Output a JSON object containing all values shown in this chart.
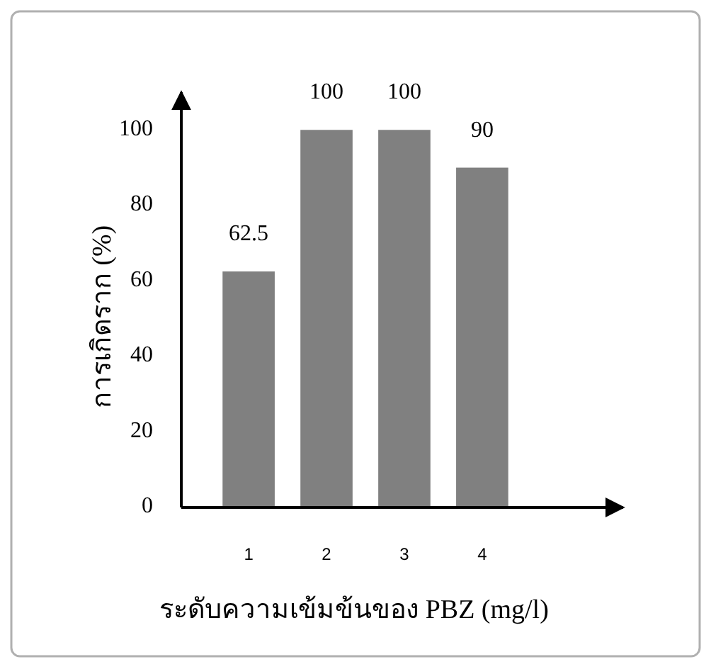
{
  "chart_data": {
    "type": "bar",
    "xlabel": "ระดับความเข้มข้นของ PBZ (mg/l)",
    "ylabel": "การเกิดราก (%)",
    "categories": [
      "1",
      "2",
      "3",
      "4"
    ],
    "values": [
      62.5,
      100,
      100,
      90
    ],
    "color": "#808080",
    "ylim": [
      0,
      110
    ],
    "yticks": [
      0,
      20,
      40,
      60,
      80,
      100
    ],
    "data_labels": true,
    "grid": false
  }
}
